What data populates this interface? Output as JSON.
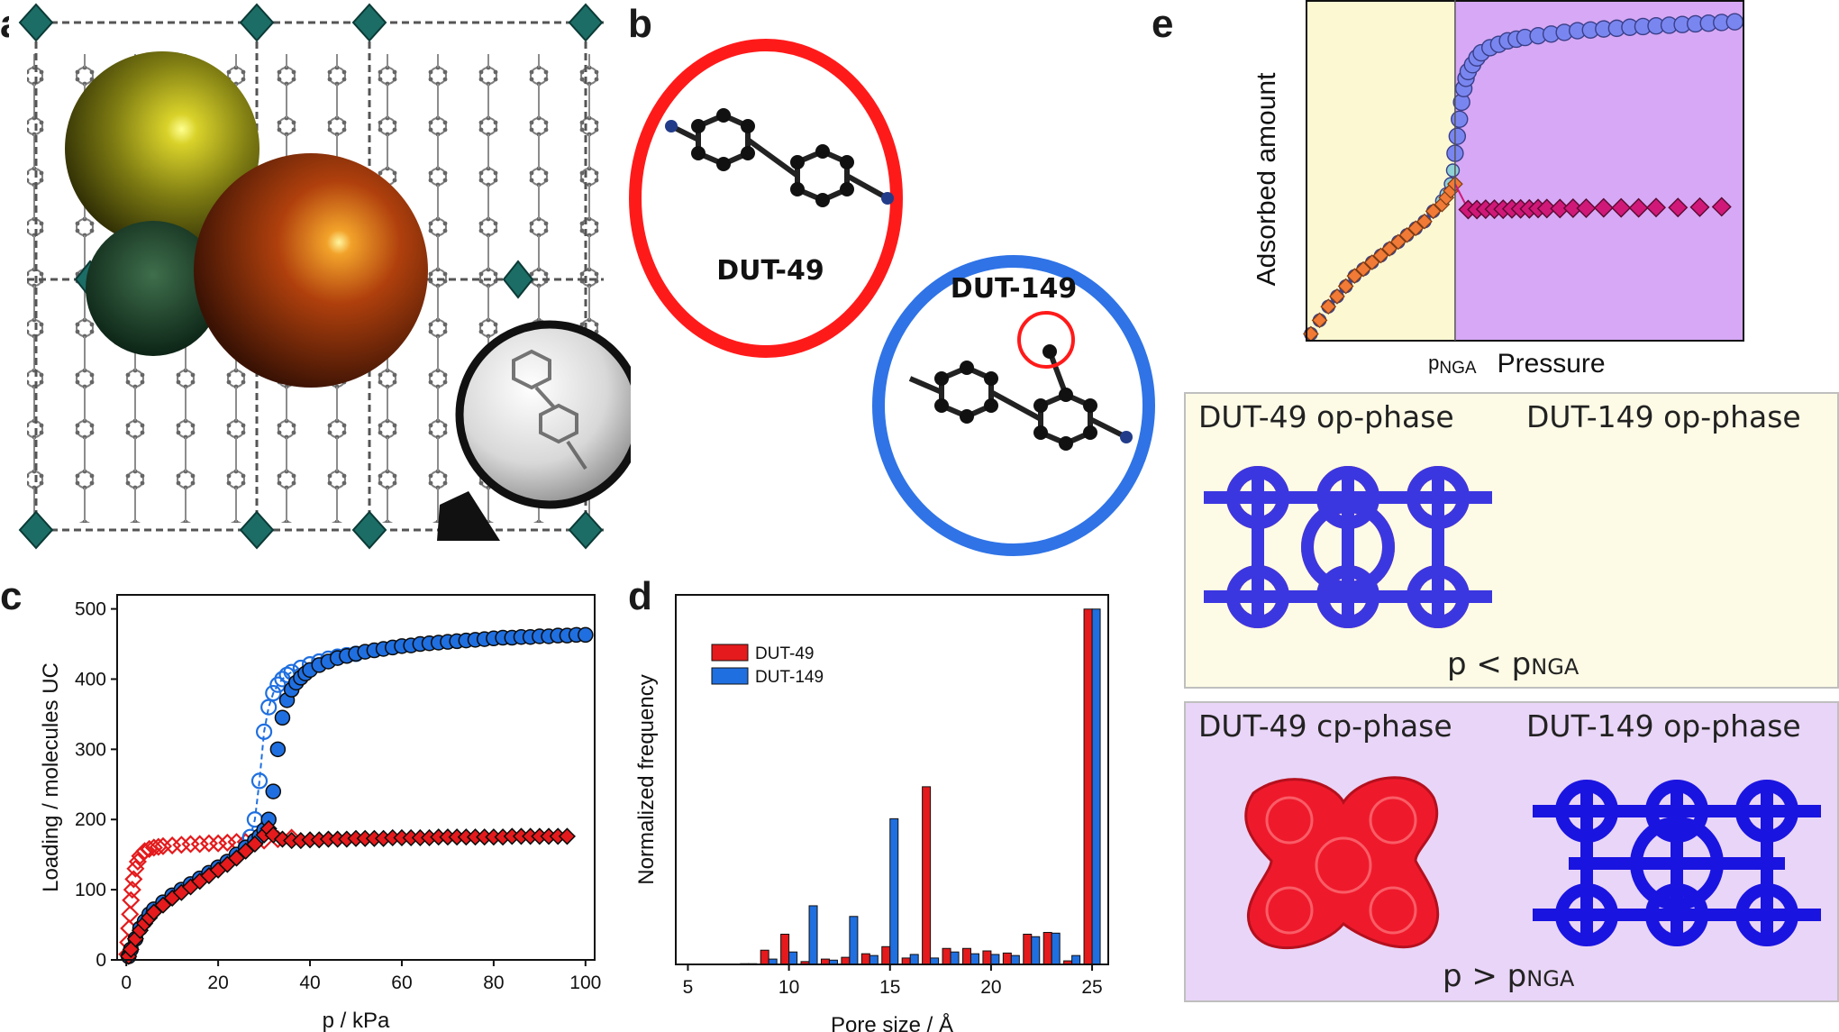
{
  "panels": {
    "a": {
      "letter": "a"
    },
    "b": {
      "letter": "b",
      "label_left": "DUT-49",
      "label_right": "DUT-149"
    },
    "c": {
      "letter": "c"
    },
    "d": {
      "letter": "d"
    },
    "e": {
      "letter": "e"
    }
  },
  "panel_e": {
    "conditions": {
      "below": {
        "prefix": "p < p",
        "sub": "NGA"
      },
      "above": {
        "prefix": "p > p",
        "sub": "NGA"
      }
    },
    "top_box": {
      "left_label": "DUT-49 op-phase",
      "right_label": "DUT-149 op-phase"
    },
    "bottom_box": {
      "left_label": "DUT-49 cp-phase",
      "right_label": "DUT-149 op-phase"
    }
  },
  "colors": {
    "dut49": "#e41a1c",
    "dut149": "#1f6fe0",
    "region_low": "#fbf8d2",
    "region_high": "#d6a8f5",
    "frame_low": "#fdfbe6",
    "frame_high": "#e9d5f7"
  },
  "chart_data": [
    {
      "id": "c",
      "type": "scatter",
      "title": "",
      "xlabel": "p / kPa",
      "ylabel": "Loading / molecules UC",
      "xlim": [
        -2,
        102
      ],
      "ylim": [
        0,
        520
      ],
      "xticks": [
        0,
        20,
        40,
        60,
        80,
        100
      ],
      "yticks": [
        0,
        100,
        200,
        300,
        400,
        500
      ],
      "series": [
        {
          "key": "dut149_ads",
          "marker": "circle",
          "filled": true,
          "color": "#1f6fe0",
          "x": [
            0.5,
            1,
            2,
            3,
            4,
            5,
            6,
            8,
            10,
            12,
            14,
            16,
            18,
            20,
            22,
            24,
            26,
            28,
            29,
            30,
            31,
            32,
            33,
            34,
            35,
            36,
            37,
            38,
            39,
            40,
            42,
            44,
            46,
            48,
            50,
            52,
            54,
            56,
            58,
            60,
            62,
            64,
            66,
            68,
            70,
            72,
            74,
            76,
            78,
            80,
            82,
            84,
            86,
            88,
            90,
            92,
            94,
            96,
            98,
            100
          ],
          "y": [
            5,
            15,
            30,
            45,
            55,
            65,
            72,
            82,
            92,
            100,
            108,
            116,
            124,
            132,
            140,
            150,
            160,
            170,
            176,
            185,
            200,
            240,
            300,
            345,
            370,
            385,
            395,
            402,
            408,
            413,
            420,
            425,
            430,
            433,
            436,
            439,
            441,
            443,
            445,
            447,
            448,
            450,
            451,
            452,
            453,
            454,
            455,
            456,
            457,
            458,
            459,
            459,
            460,
            460,
            461,
            461,
            462,
            462,
            463,
            463
          ]
        },
        {
          "key": "dut149_des",
          "marker": "circle",
          "filled": false,
          "dashed": true,
          "color": "#1f6fe0",
          "x": [
            26,
            27,
            28,
            29,
            30,
            31,
            32,
            33,
            34,
            35,
            36,
            38,
            40,
            42,
            44,
            46,
            48,
            50
          ],
          "y": [
            160,
            175,
            200,
            255,
            325,
            360,
            380,
            392,
            400,
            406,
            410,
            416,
            421,
            425,
            429,
            432,
            434,
            436
          ]
        },
        {
          "key": "dut49_ads",
          "marker": "diamond",
          "filled": true,
          "color": "#e41a1c",
          "x": [
            0.5,
            1,
            2,
            3,
            4,
            5,
            6,
            8,
            10,
            12,
            14,
            16,
            18,
            20,
            22,
            24,
            26,
            28,
            30,
            31,
            32,
            34,
            36,
            38,
            40,
            42,
            44,
            46,
            48,
            50,
            52,
            54,
            56,
            58,
            60,
            62,
            64,
            66,
            68,
            70,
            72,
            74,
            76,
            78,
            80,
            82,
            84,
            86,
            88,
            90,
            92,
            94,
            96
          ],
          "y": [
            5,
            15,
            30,
            42,
            52,
            60,
            68,
            78,
            88,
            96,
            104,
            112,
            120,
            128,
            136,
            145,
            155,
            165,
            178,
            187,
            178,
            172,
            170,
            170,
            171,
            171,
            172,
            172,
            172,
            173,
            173,
            173,
            173,
            174,
            174,
            174,
            174,
            174,
            175,
            175,
            175,
            175,
            175,
            175,
            175,
            175,
            176,
            176,
            176,
            176,
            176,
            176,
            176
          ]
        },
        {
          "key": "dut49_des",
          "marker": "diamond",
          "filled": false,
          "color": "#e41a1c",
          "x": [
            0.2,
            0.4,
            0.6,
            0.8,
            1,
            1.3,
            1.6,
            2,
            2.5,
            3,
            4,
            5,
            6,
            7,
            8,
            10,
            12,
            14,
            16,
            18,
            20,
            22,
            24,
            26,
            28,
            30,
            33,
            36
          ],
          "y": [
            8,
            25,
            45,
            65,
            85,
            100,
            115,
            130,
            140,
            148,
            155,
            158,
            160,
            161,
            162,
            163,
            164,
            165,
            165,
            166,
            166,
            167,
            168,
            168,
            169,
            170,
            172,
            174
          ]
        }
      ]
    },
    {
      "id": "d",
      "type": "bar",
      "title": "",
      "xlabel": "Pore size / Å",
      "ylabel": "Normalized frequency",
      "xlim": [
        4.4,
        25.8
      ],
      "ylim": [
        0,
        1.04
      ],
      "xticks": [
        5,
        10,
        15,
        20,
        25
      ],
      "legend_position": "top-left",
      "categories": [
        5,
        6,
        7,
        8,
        9,
        10,
        11,
        12,
        13,
        14,
        15,
        16,
        17,
        18,
        19,
        20,
        21,
        22,
        23,
        24,
        25
      ],
      "series": [
        {
          "name": "DUT-49",
          "color": "#e41a1c",
          "values": [
            0,
            0,
            0,
            0.002,
            0.04,
            0.085,
            0.008,
            0.015,
            0.02,
            0.03,
            0.05,
            0.018,
            0.5,
            0.045,
            0.045,
            0.038,
            0.032,
            0.085,
            0.09,
            0.01,
            1.0
          ]
        },
        {
          "name": "DUT-149",
          "color": "#1f6fe0",
          "values": [
            0,
            0,
            0,
            0.002,
            0.015,
            0.035,
            0.165,
            0.012,
            0.135,
            0.025,
            0.41,
            0.028,
            0.018,
            0.035,
            0.03,
            0.028,
            0.025,
            0.078,
            0.088,
            0.025,
            1.0
          ]
        }
      ]
    },
    {
      "id": "e",
      "type": "scatter",
      "title": "",
      "xlabel": "Pressure",
      "xmark_label": {
        "prefix": "p",
        "sub": "NGA"
      },
      "ylabel": "Adsorbed amount",
      "xlim": [
        0,
        1
      ],
      "ylim": [
        0,
        1
      ],
      "x_split": 0.34,
      "series": [
        {
          "key": "blue",
          "marker": "circle",
          "color": "#7a86f0",
          "x": [
            0.01,
            0.03,
            0.05,
            0.07,
            0.09,
            0.11,
            0.13,
            0.15,
            0.17,
            0.19,
            0.21,
            0.23,
            0.25,
            0.27,
            0.29,
            0.31,
            0.32,
            0.33,
            0.335,
            0.34,
            0.345,
            0.35,
            0.355,
            0.36,
            0.365,
            0.37,
            0.38,
            0.39,
            0.4,
            0.42,
            0.44,
            0.46,
            0.48,
            0.5,
            0.53,
            0.56,
            0.59,
            0.62,
            0.65,
            0.68,
            0.71,
            0.74,
            0.77,
            0.8,
            0.83,
            0.86,
            0.89,
            0.92,
            0.95,
            0.98
          ],
          "y": [
            0.02,
            0.06,
            0.1,
            0.13,
            0.16,
            0.19,
            0.21,
            0.23,
            0.25,
            0.27,
            0.29,
            0.31,
            0.33,
            0.35,
            0.38,
            0.41,
            0.43,
            0.46,
            0.5,
            0.55,
            0.6,
            0.65,
            0.7,
            0.74,
            0.77,
            0.79,
            0.81,
            0.83,
            0.845,
            0.86,
            0.87,
            0.88,
            0.885,
            0.89,
            0.895,
            0.9,
            0.905,
            0.91,
            0.912,
            0.915,
            0.917,
            0.92,
            0.922,
            0.924,
            0.926,
            0.928,
            0.93,
            0.932,
            0.934,
            0.936
          ]
        },
        {
          "key": "orange",
          "marker": "diamond",
          "color": "#f07a36",
          "x": [
            0.01,
            0.03,
            0.05,
            0.07,
            0.09,
            0.11,
            0.13,
            0.15,
            0.17,
            0.19,
            0.21,
            0.23,
            0.25,
            0.27,
            0.29,
            0.31,
            0.32,
            0.33,
            0.34
          ],
          "y": [
            0.02,
            0.06,
            0.1,
            0.13,
            0.16,
            0.19,
            0.21,
            0.23,
            0.25,
            0.27,
            0.29,
            0.31,
            0.33,
            0.35,
            0.38,
            0.4,
            0.42,
            0.44,
            0.46
          ]
        },
        {
          "key": "magenta",
          "marker": "diamond",
          "color": "#d01879",
          "x": [
            0.37,
            0.39,
            0.41,
            0.43,
            0.45,
            0.47,
            0.49,
            0.51,
            0.53,
            0.55,
            0.58,
            0.61,
            0.64,
            0.68,
            0.72,
            0.76,
            0.8,
            0.85,
            0.9,
            0.95
          ],
          "y": [
            0.385,
            0.385,
            0.386,
            0.386,
            0.386,
            0.387,
            0.387,
            0.387,
            0.388,
            0.388,
            0.388,
            0.389,
            0.389,
            0.39,
            0.39,
            0.39,
            0.391,
            0.391,
            0.392,
            0.393
          ]
        }
      ]
    }
  ]
}
